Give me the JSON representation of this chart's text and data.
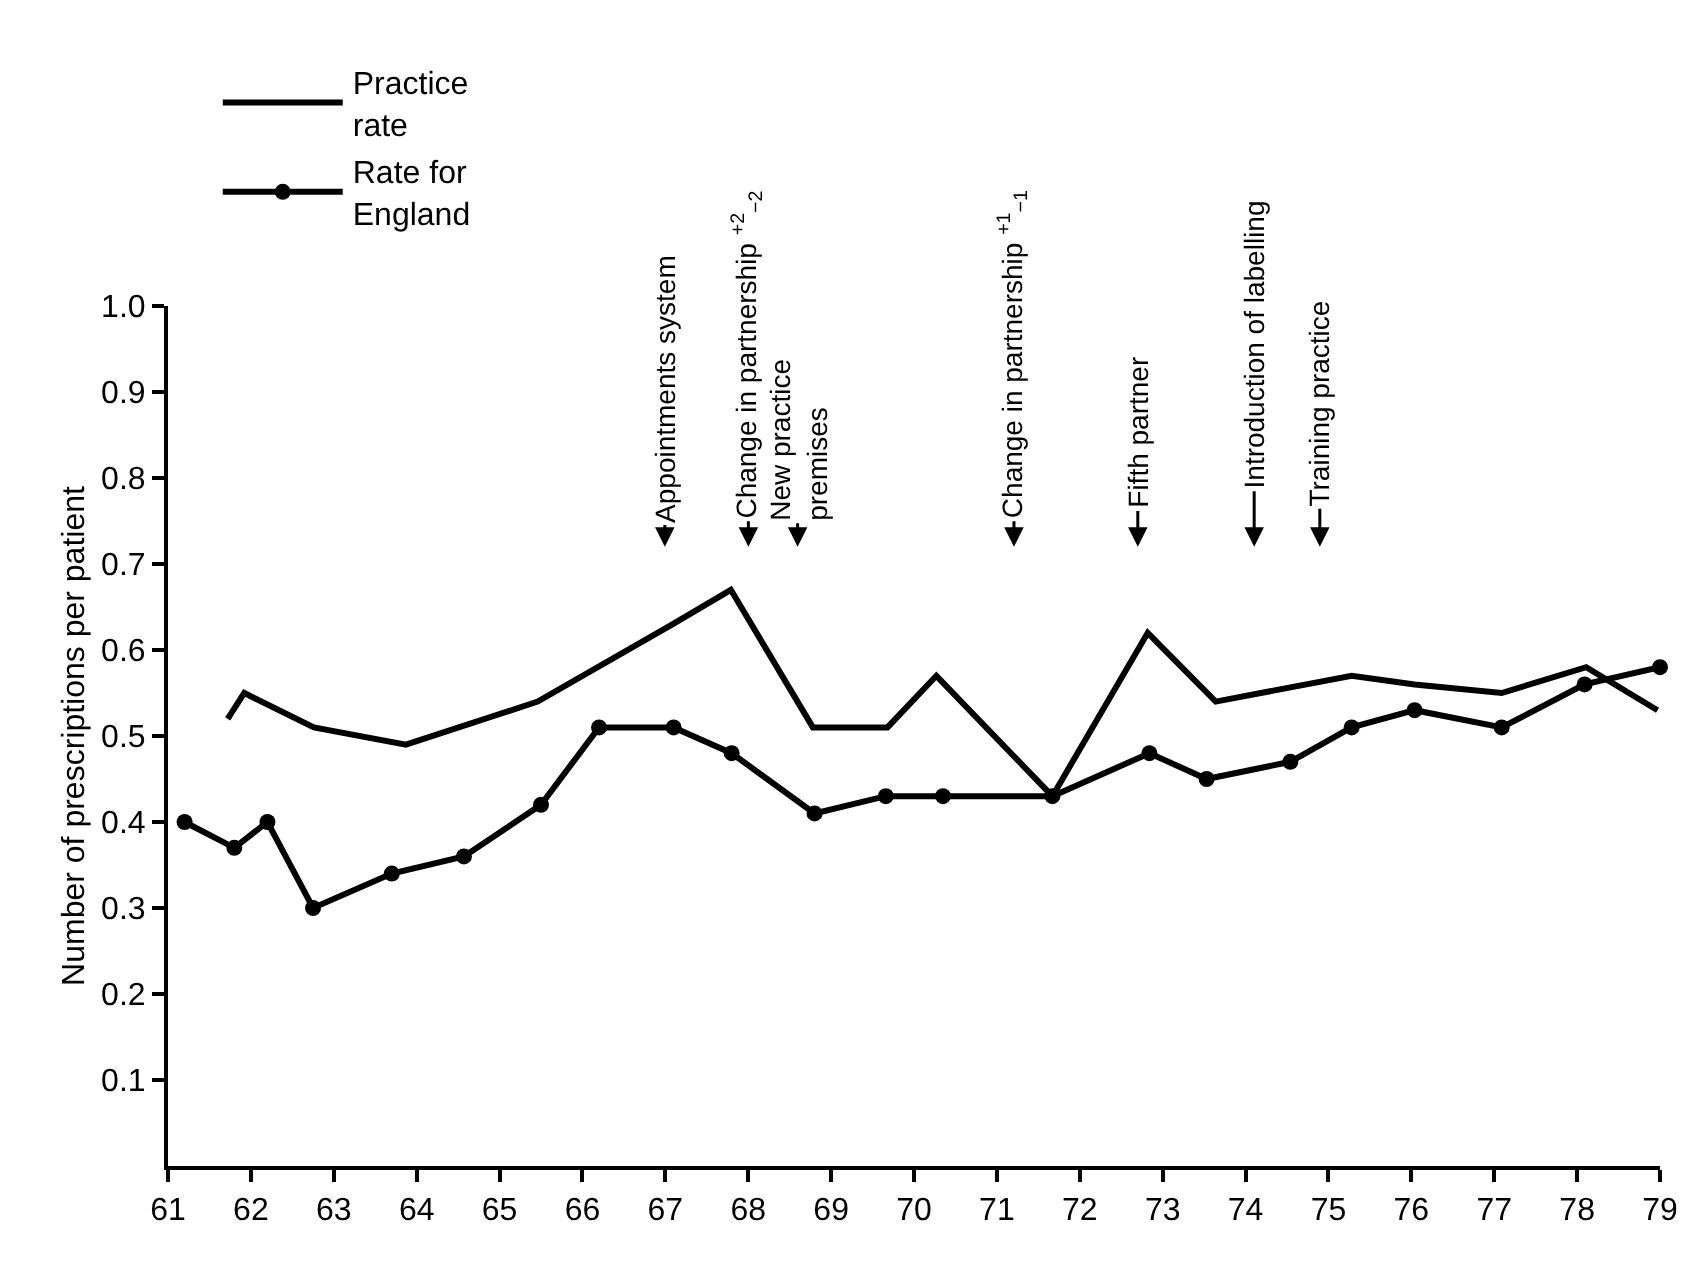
{
  "chart_data": {
    "type": "line",
    "ylabel": "Number of prescriptions per patient",
    "xlim": [
      61,
      79
    ],
    "xticks": [
      61,
      62,
      63,
      64,
      65,
      66,
      67,
      68,
      69,
      70,
      71,
      72,
      73,
      74,
      75,
      76,
      77,
      78,
      79
    ],
    "ylim": [
      0,
      1.0
    ],
    "yticks": [
      0.1,
      0.2,
      0.3,
      0.4,
      0.5,
      0.6,
      0.7,
      0.8,
      0.9,
      {
        "value": 1.0,
        "label": "1.0"
      }
    ],
    "legend": "top left",
    "line_style": "solid",
    "series": [
      {
        "name": "Practice\nrate",
        "color": "#000000",
        "marker": "none",
        "x": [
          61.72,
          61.92,
          62.76,
          63.87,
          65.46,
          67.09,
          67.79,
          68.78,
          69.68,
          70.27,
          71.67,
          72.82,
          73.64,
          75.28,
          76.04,
          77.09,
          78.11,
          78.97
        ],
        "values": [
          0.52,
          0.55,
          0.51,
          0.49,
          0.54,
          0.63,
          0.67,
          0.51,
          0.51,
          0.57,
          0.43,
          0.62,
          0.54,
          0.57,
          0.56,
          0.55,
          0.58,
          0.53
        ]
      },
      {
        "name": "Rate for\nEngland",
        "color": "#000000",
        "marker": "circle",
        "x": [
          61.2,
          61.8,
          62.2,
          62.75,
          63.7,
          64.57,
          65.5,
          66.2,
          67.1,
          67.8,
          68.8,
          69.66,
          70.35,
          71.67,
          72.84,
          73.53,
          74.54,
          75.28,
          76.04,
          77.09,
          78.09,
          79.0
        ],
        "values": [
          0.4,
          0.37,
          0.4,
          0.3,
          0.34,
          0.36,
          0.42,
          0.51,
          0.51,
          0.48,
          0.41,
          0.43,
          0.43,
          0.43,
          0.48,
          0.45,
          0.47,
          0.51,
          0.53,
          0.51,
          0.56,
          0.58
        ]
      }
    ],
    "annotations": [
      "Appointments system",
      "Change in partnership $^{+2}$$_{−2}$",
      "New practice\npremises",
      "Change in partnership $^{+1}$$_{−1}$",
      "Fifth partner",
      "Introduction of labelling",
      "Training practice"
    ]
  }
}
